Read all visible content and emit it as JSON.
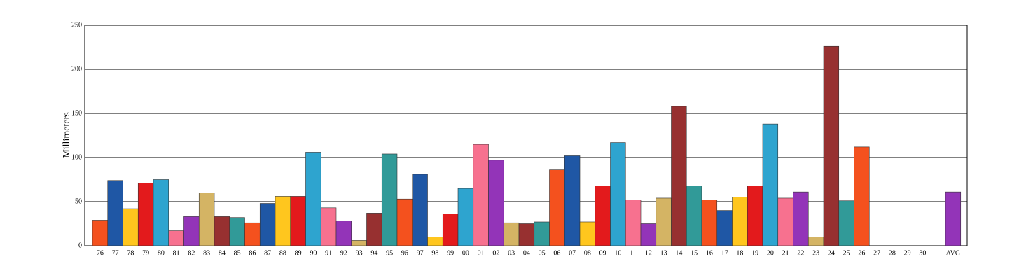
{
  "chart_data": {
    "type": "bar",
    "ylabel": "Millimeters",
    "categories": [
      "76",
      "77",
      "78",
      "79",
      "80",
      "81",
      "82",
      "83",
      "84",
      "85",
      "86",
      "87",
      "88",
      "89",
      "90",
      "91",
      "92",
      "93",
      "94",
      "95",
      "96",
      "97",
      "98",
      "99",
      "00",
      "01",
      "02",
      "03",
      "04",
      "05",
      "06",
      "07",
      "08",
      "09",
      "10",
      "11",
      "12",
      "13",
      "14",
      "15",
      "16",
      "17",
      "18",
      "19",
      "20",
      "21",
      "22",
      "23",
      "24",
      "25",
      "26",
      "27",
      "28",
      "29",
      "30",
      null,
      "AVG"
    ],
    "values": [
      29,
      74,
      42,
      71,
      75,
      17,
      33,
      60,
      33,
      32,
      26,
      48,
      56,
      56,
      106,
      43,
      28,
      6,
      37,
      104,
      53,
      81,
      10,
      36,
      65,
      115,
      97,
      26,
      25,
      27,
      86,
      102,
      27,
      68,
      117,
      52,
      25,
      54,
      158,
      68,
      52,
      40,
      55,
      68,
      138,
      54,
      61,
      10,
      226,
      51,
      112,
      null,
      null,
      null,
      null,
      null,
      61
    ],
    "colors": [
      "#f4511e",
      "#1f57a5",
      "#ffc61e",
      "#e31a1c",
      "#2ea4cf",
      "#f7718f",
      "#9334b8",
      "#d4b464",
      "#973030",
      "#319a98"
    ],
    "ylim": [
      0,
      250
    ],
    "yticks": [
      0,
      50,
      100,
      150,
      200,
      250
    ],
    "grid": true
  }
}
